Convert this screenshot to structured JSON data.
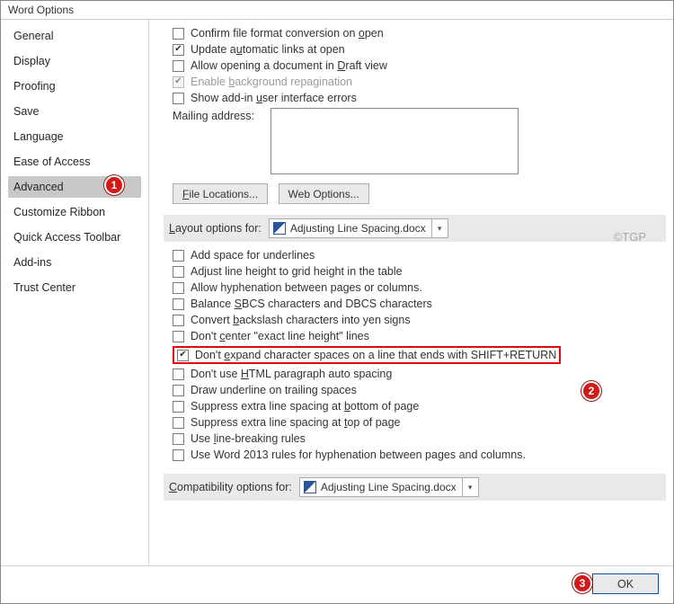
{
  "window": {
    "title": "Word Options"
  },
  "sidebar": {
    "items": [
      "General",
      "Display",
      "Proofing",
      "Save",
      "Language",
      "Ease of Access",
      "Advanced",
      "Customize Ribbon",
      "Quick Access Toolbar",
      "Add-ins",
      "Trust Center"
    ],
    "selected_index": 6
  },
  "general_opts": {
    "confirm_format": {
      "label_pre": "Confirm file format conversion on ",
      "u": "o",
      "label_post": "pen",
      "checked": false,
      "disabled": false
    },
    "update_links": {
      "label_pre": "Update a",
      "u": "u",
      "label_post": "tomatic links at open",
      "checked": true,
      "disabled": false
    },
    "allow_draft": {
      "label_pre": "Allow opening a document in ",
      "u": "D",
      "label_post": "raft view",
      "checked": false,
      "disabled": false
    },
    "bg_repaginate": {
      "label_pre": "Enable ",
      "u": "b",
      "label_post": "ackground repagination",
      "checked": true,
      "disabled": true
    },
    "addin_errors": {
      "label_pre": "Show add-in ",
      "u": "u",
      "label_post": "ser interface errors",
      "checked": false,
      "disabled": false
    }
  },
  "mailing": {
    "label": "Mailing address:",
    "value": ""
  },
  "buttons": {
    "file_locations": "File Locations...",
    "web_options": "Web Options..."
  },
  "watermark": "©TGP",
  "layout_section": {
    "head_pre": "",
    "head_u": "L",
    "head_label": "ayout options for:",
    "doc": "Adjusting Line Spacing.docx",
    "items": [
      {
        "label": "Add space for underlines",
        "checked": false
      },
      {
        "label": "Adjust line height to grid height in the table",
        "checked": false
      },
      {
        "label": "Allow hyphenation between pages or columns.",
        "checked": false
      },
      {
        "label_pre": "Balance ",
        "u": "S",
        "label_post": "BCS characters and DBCS characters",
        "checked": false
      },
      {
        "label_pre": "Convert ",
        "u": "b",
        "label_post": "ackslash characters into yen signs",
        "checked": false
      },
      {
        "label_pre": "Don't ",
        "u": "c",
        "label_post": "enter \"exact line height\" lines",
        "checked": false
      },
      {
        "label_pre": "Don't ",
        "u": "e",
        "label_post": "xpand character spaces on a line that ends with SHIFT+RETURN",
        "checked": true,
        "highlight": true
      },
      {
        "label_pre": "Don't use ",
        "u": "H",
        "label_post": "TML paragraph auto spacing",
        "checked": false
      },
      {
        "label": "Draw underline on trailing spaces",
        "checked": false
      },
      {
        "label_pre": "Suppress extra line spacing at ",
        "u": "b",
        "label_post": "ottom of page",
        "checked": false
      },
      {
        "label_pre": "Suppress extra line spacing at ",
        "u": "t",
        "label_post": "op of page",
        "checked": false
      },
      {
        "label_pre": "Use ",
        "u": "l",
        "label_post": "ine-breaking rules",
        "checked": false
      },
      {
        "label": "Use Word 2013 rules for hyphenation between pages and columns.",
        "checked": false
      }
    ]
  },
  "compat_section": {
    "head_label": "Compatibility options for:",
    "doc": "Adjusting Line Spacing.docx"
  },
  "footer": {
    "ok": "OK"
  },
  "markers": {
    "m1": "1",
    "m2": "2",
    "m3": "3"
  }
}
